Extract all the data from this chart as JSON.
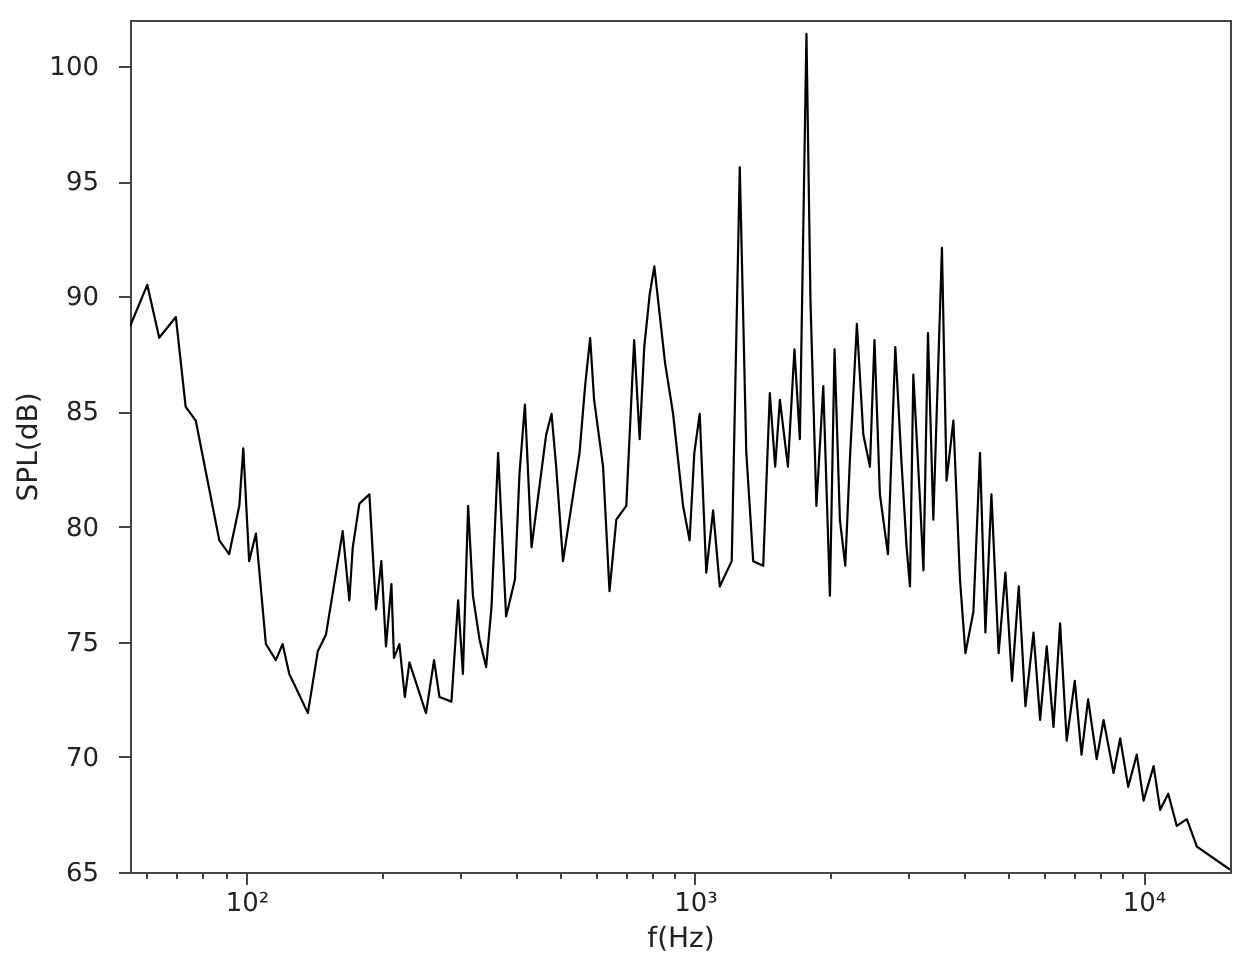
{
  "chart_data": {
    "type": "line",
    "xlabel": "f(Hz)",
    "ylabel": "SPL(dB)",
    "log": "x",
    "grid": false,
    "xlim": [
      55,
      15600
    ],
    "ylim": [
      65,
      102
    ],
    "xticks": [
      {
        "value": 60,
        "label": null
      },
      {
        "value": 70,
        "label": null
      },
      {
        "value": 80,
        "label": null
      },
      {
        "value": 90,
        "label": null
      },
      {
        "value": 100,
        "label": "10²"
      },
      {
        "value": 200,
        "label": null
      },
      {
        "value": 300,
        "label": null
      },
      {
        "value": 400,
        "label": null
      },
      {
        "value": 500,
        "label": null
      },
      {
        "value": 600,
        "label": null
      },
      {
        "value": 700,
        "label": null
      },
      {
        "value": 800,
        "label": null
      },
      {
        "value": 900,
        "label": null
      },
      {
        "value": 1000,
        "label": "10³"
      },
      {
        "value": 2000,
        "label": null
      },
      {
        "value": 3000,
        "label": null
      },
      {
        "value": 4000,
        "label": null
      },
      {
        "value": 5000,
        "label": null
      },
      {
        "value": 6000,
        "label": null
      },
      {
        "value": 7000,
        "label": null
      },
      {
        "value": 8000,
        "label": null
      },
      {
        "value": 9000,
        "label": null
      },
      {
        "value": 10000,
        "label": "10⁴"
      }
    ],
    "yticks": [
      65,
      70,
      75,
      80,
      85,
      90,
      95,
      100
    ],
    "x": [
      55,
      60.1,
      63.9,
      69.6,
      73.2,
      77.1,
      87.0,
      91.5,
      96.4,
      98.4,
      101.4,
      105.0,
      110.5,
      116.3,
      120.4,
      124.6,
      128.9,
      137.1,
      144.3,
      150.4,
      155.7,
      163.9,
      169.6,
      172.6,
      178.6,
      188.0,
      194.5,
      199.9,
      204.7,
      210.5,
      213.3,
      219.3,
      225.5,
      230.9,
      251.4,
      262.0,
      269.4,
      286.5,
      296.5,
      303.9,
      312.1,
      319.9,
      330.9,
      342.3,
      351.9,
      364.1,
      379.3,
      396.9,
      406.3,
      417.8,
      432.2,
      466,
      479,
      490.5,
      508,
      553,
      569,
      584,
      596,
      624,
      645,
      668,
      703,
      732,
      753,
      771,
      793,
      812,
      858,
      894,
      941,
      973,
      997,
      1025,
      1060,
      1098,
      1136,
      1208,
      1259,
      1302,
      1349,
      1420,
      1469,
      1510,
      1547,
      1612,
      1667,
      1714,
      1773,
      1810,
      1866,
      1933,
      2000,
      2048,
      2105,
      2164,
      2216,
      2297,
      2374,
      2456,
      2514,
      2585,
      2694,
      2798,
      2886,
      2965,
      3017,
      3069,
      3177,
      3233,
      3309,
      3401,
      3555,
      3640,
      3770,
      3900,
      4010,
      4178,
      4322,
      4444,
      4583,
      4756,
      4924,
      5094,
      5273,
      5458,
      5688,
      5884,
      6088,
      6303,
      6520,
      6745,
      7030,
      7278,
      7529,
      7870,
      8151,
      8580,
      8876,
      9250,
      9667,
      10010,
      10540,
      10900,
      11360,
      11870,
      12500,
      13160,
      14580,
      15600
    ],
    "series": [
      {
        "color": "#000000",
        "values": [
          88.7,
          90.5,
          88.2,
          89.1,
          85.2,
          84.6,
          79.4,
          78.8,
          80.9,
          83.4,
          78.5,
          79.7,
          74.9,
          74.2,
          74.9,
          73.6,
          73.0,
          71.9,
          74.6,
          75.3,
          77.1,
          79.8,
          76.8,
          79.1,
          81.0,
          81.4,
          76.4,
          78.5,
          74.8,
          77.5,
          74.3,
          74.9,
          72.6,
          74.1,
          71.9,
          74.2,
          72.6,
          72.4,
          76.8,
          73.6,
          80.9,
          77.0,
          75.1,
          73.9,
          76.5,
          83.2,
          76.1,
          77.7,
          82.3,
          85.3,
          79.1,
          84.0,
          84.9,
          82.6,
          78.5,
          83.2,
          86.1,
          88.2,
          85.5,
          82.6,
          77.2,
          80.3,
          80.9,
          88.1,
          83.8,
          87.8,
          90.1,
          91.3,
          87.1,
          84.9,
          80.9,
          79.4,
          83.2,
          84.9,
          78.0,
          80.7,
          77.4,
          78.5,
          95.6,
          83.2,
          78.5,
          78.3,
          85.8,
          82.6,
          85.5,
          82.6,
          87.7,
          83.8,
          101.4,
          89.8,
          80.9,
          86.1,
          77.0,
          87.7,
          80.3,
          78.3,
          82.9,
          88.8,
          84.0,
          82.6,
          88.1,
          81.4,
          78.8,
          87.8,
          82.9,
          79.1,
          77.4,
          86.6,
          81.1,
          78.1,
          88.4,
          80.3,
          92.1,
          82.0,
          84.6,
          77.7,
          74.5,
          76.3,
          83.2,
          75.4,
          81.4,
          74.5,
          78.0,
          73.3,
          77.4,
          72.2,
          75.4,
          71.6,
          74.8,
          71.3,
          75.8,
          70.7,
          73.3,
          70.1,
          72.5,
          69.9,
          71.6,
          69.3,
          70.8,
          68.7,
          70.1,
          68.1,
          69.6,
          67.7,
          68.4,
          67.0,
          67.3,
          66.1,
          65.5,
          65.1
        ]
      }
    ]
  }
}
